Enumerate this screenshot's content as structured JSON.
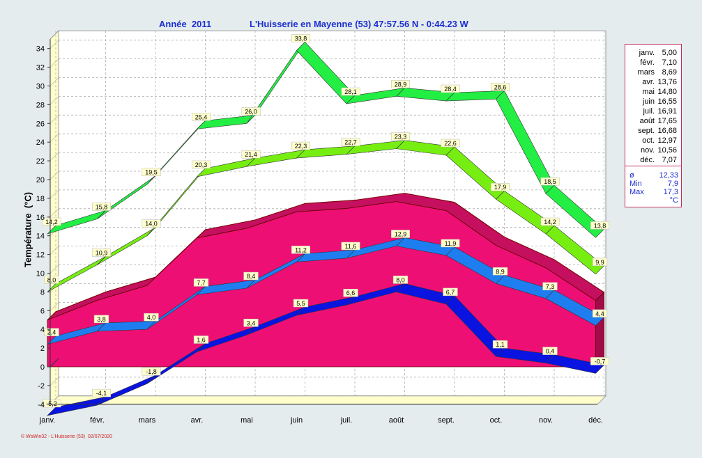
{
  "header": {
    "year_label": "Année  2011",
    "station_label": "L'Huisserie en Mayenne (53) 47:57.56 N - 0:44.23 W"
  },
  "footer": "© WsWin32 - L'Huisserie (53)  02/07/2020",
  "legend": {
    "months": [
      "janv.",
      "févr.",
      "mars",
      "avr.",
      "mai",
      "juin",
      "juil.",
      "août",
      "sept.",
      "oct.",
      "nov.",
      "déc."
    ],
    "values": [
      "5,00",
      "7,10",
      "8,69",
      "13,76",
      "14,80",
      "16,55",
      "16,91",
      "17,65",
      "16,68",
      "12,97",
      "10,56",
      "7,07"
    ],
    "stats": [
      {
        "key": "ø",
        "value": "12,33"
      },
      {
        "key": "Min",
        "value": "7,9"
      },
      {
        "key": "Max",
        "value": "17,3"
      },
      {
        "key": "",
        "value": "°C"
      }
    ]
  },
  "colors": {
    "max_abs": "#22ee44",
    "max_mean": "#77ee11",
    "mean_area": "#ee0f75",
    "min_mean": "#1e7ef0",
    "min_abs": "#0a14e0",
    "background": "#e4ecee",
    "plot_bg": "#ffffff",
    "wall": "#ffffcc"
  },
  "chart_data": {
    "type": "area",
    "title": "Année  2011",
    "subtitle": "L'Huisserie en Mayenne (53) 47:57.56 N - 0:44.23 W",
    "xlabel": "",
    "ylabel": "Température  (°C)",
    "ylim": [
      -4,
      35
    ],
    "yticks": [
      -4,
      -2,
      0,
      2,
      4,
      6,
      8,
      10,
      12,
      14,
      16,
      18,
      20,
      22,
      24,
      26,
      28,
      30,
      32,
      34
    ],
    "grid": true,
    "categories": [
      "janv.",
      "févr.",
      "mars",
      "avr.",
      "mai",
      "juin",
      "juil.",
      "août",
      "sept.",
      "oct.",
      "nov.",
      "déc."
    ],
    "series": [
      {
        "key": "max_abs",
        "kind": "band",
        "values": [
          14.2,
          15.8,
          19.5,
          25.4,
          26.0,
          33.8,
          28.1,
          28.9,
          28.4,
          28.6,
          18.5,
          13.8
        ],
        "labels": [
          "14,2",
          "15,8",
          "19,5",
          "25,4",
          "26,0",
          "33,8",
          "28,1",
          "28,9",
          "28,4",
          "28,6",
          "18,5",
          "13,8"
        ]
      },
      {
        "key": "max_mean",
        "kind": "band",
        "values": [
          8.0,
          10.9,
          14.0,
          20.3,
          21.4,
          22.3,
          22.7,
          23.3,
          22.6,
          17.9,
          14.2,
          9.9
        ],
        "labels": [
          "8,0",
          "10,9",
          "14,0",
          "20,3",
          "21,4",
          "22,3",
          "22,7",
          "23,3",
          "22,6",
          "17,9",
          "14,2",
          "9,9"
        ]
      },
      {
        "key": "mean_area",
        "kind": "area",
        "values": [
          5.0,
          7.1,
          8.69,
          13.76,
          14.8,
          16.55,
          16.91,
          17.65,
          16.68,
          12.97,
          10.56,
          7.07
        ]
      },
      {
        "key": "min_mean",
        "kind": "band",
        "values": [
          2.4,
          3.8,
          4.0,
          7.7,
          8.4,
          11.2,
          11.6,
          12.9,
          11.9,
          8.9,
          7.3,
          4.4
        ],
        "labels": [
          "2,4",
          "3,8",
          "4,0",
          "7,7",
          "8,4",
          "11,2",
          "11,6",
          "12,9",
          "11,9",
          "8,9",
          "7,3",
          "4,4"
        ]
      },
      {
        "key": "min_abs",
        "kind": "band",
        "values": [
          -5.2,
          -4.1,
          -1.8,
          1.6,
          3.4,
          5.5,
          6.6,
          8.0,
          6.7,
          1.1,
          0.4,
          -0.7
        ],
        "labels": [
          "-5,2",
          "-4,1",
          "-1,8",
          "1,6",
          "3,4",
          "5,5",
          "6,6",
          "8,0",
          "6,7",
          "1,1",
          "0,4",
          "-0,7"
        ]
      }
    ]
  }
}
